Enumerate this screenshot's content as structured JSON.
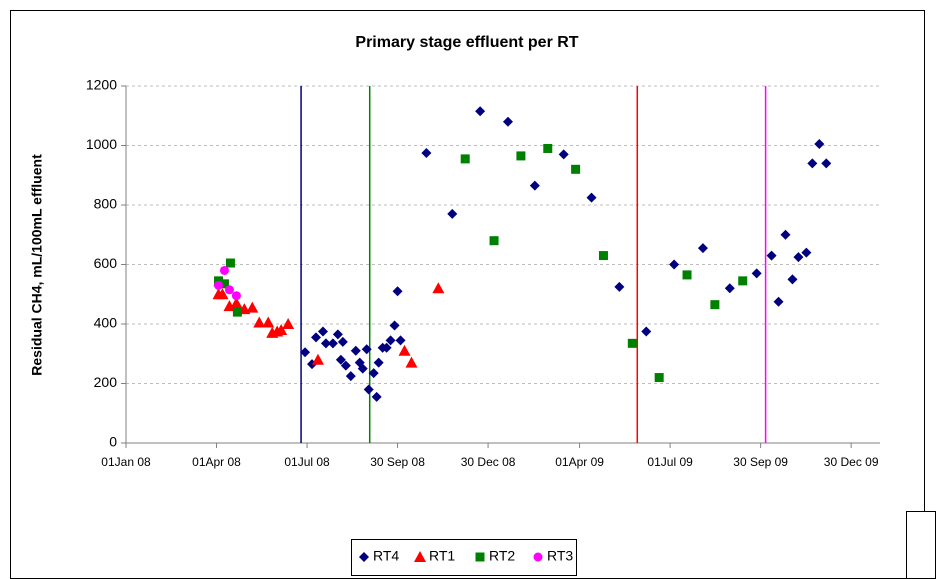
{
  "chart_data": {
    "type": "scatter",
    "title": "Primary stage effluent per RT",
    "y_label": "Residual CH4, mL/100mL effluent",
    "xlim": [
      "2008-01-01",
      "2010-01-28"
    ],
    "xticks": [
      {
        "value": "2008-01-01",
        "label": "01Jan 08"
      },
      {
        "value": "2008-04-01",
        "label": "01Apr 08"
      },
      {
        "value": "2008-07-01",
        "label": "01Jul 08"
      },
      {
        "value": "2008-09-30",
        "label": "30 Sep 08"
      },
      {
        "value": "2008-12-30",
        "label": "30 Dec 08"
      },
      {
        "value": "2009-04-01",
        "label": "01Apr 09"
      },
      {
        "value": "2009-07-01",
        "label": "01Jul 09"
      },
      {
        "value": "2009-09-30",
        "label": "30 Sep 09"
      },
      {
        "value": "2009-12-30",
        "label": "30 Dec 09"
      }
    ],
    "ylim": [
      0,
      1200
    ],
    "yticks": [
      0,
      200,
      400,
      600,
      800,
      1000,
      1200
    ],
    "grid": true,
    "legend": "bottom",
    "vlines": [
      {
        "x": "2008-06-25",
        "color": "#000080"
      },
      {
        "x": "2008-09-02",
        "color": "#008000"
      },
      {
        "x": "2009-05-29",
        "color": "#ff0000"
      },
      {
        "x": "2009-10-05",
        "color": "#ff00ff"
      }
    ],
    "series": [
      {
        "name": "RT4",
        "color": "#000080",
        "marker": "diamond",
        "x": [
          "2008-04-03",
          "2008-06-29",
          "2008-07-06",
          "2008-07-10",
          "2008-07-17",
          "2008-07-20",
          "2008-07-27",
          "2008-08-01",
          "2008-08-04",
          "2008-08-06",
          "2008-08-09",
          "2008-08-14",
          "2008-08-19",
          "2008-08-23",
          "2008-08-26",
          "2008-08-30",
          "2008-09-01",
          "2008-09-06",
          "2008-09-09",
          "2008-09-11",
          "2008-09-15",
          "2008-09-19",
          "2008-09-23",
          "2008-09-27",
          "2008-09-30",
          "2008-10-03",
          "2008-10-29",
          "2008-11-24",
          "2008-12-22",
          "2009-01-19",
          "2009-02-15",
          "2009-03-16",
          "2009-04-13",
          "2009-05-11",
          "2009-06-07",
          "2009-07-05",
          "2009-08-03",
          "2009-08-30",
          "2009-09-26",
          "2009-10-11",
          "2009-10-18",
          "2009-10-25",
          "2009-11-01",
          "2009-11-07",
          "2009-11-15",
          "2009-11-21",
          "2009-11-28",
          "2009-12-05"
        ],
        "values": [
          530,
          305,
          265,
          355,
          375,
          335,
          335,
          365,
          280,
          340,
          260,
          225,
          310,
          270,
          250,
          315,
          180,
          235,
          155,
          270,
          320,
          320,
          345,
          395,
          510,
          345,
          975,
          770,
          1115,
          1080,
          865,
          970,
          825,
          525,
          375,
          600,
          655,
          520,
          570,
          630,
          475,
          700,
          550,
          625,
          640,
          940,
          1005,
          940
        ]
      },
      {
        "name": "RT1",
        "color": "#ff0000",
        "marker": "triangle",
        "x": [
          "2008-04-03",
          "2008-04-07",
          "2008-04-14",
          "2008-04-21",
          "2008-04-29",
          "2008-05-07",
          "2008-05-14",
          "2008-05-23",
          "2008-05-27",
          "2008-06-01",
          "2008-06-05",
          "2008-06-12",
          "2008-07-12",
          "2008-10-07",
          "2008-10-14",
          "2008-11-10"
        ],
        "values": [
          500,
          500,
          460,
          470,
          450,
          455,
          405,
          405,
          370,
          375,
          380,
          400,
          280,
          310,
          270,
          520
        ]
      },
      {
        "name": "RT2",
        "color": "#008000",
        "marker": "square",
        "x": [
          "2008-04-03",
          "2008-04-09",
          "2008-04-15",
          "2008-04-22",
          "2008-12-07",
          "2009-01-05",
          "2009-02-01",
          "2009-02-28",
          "2009-03-28",
          "2009-04-25",
          "2009-05-24",
          "2009-06-20",
          "2009-07-18",
          "2009-08-15",
          "2009-09-12"
        ],
        "values": [
          545,
          535,
          605,
          440,
          955,
          680,
          965,
          990,
          920,
          630,
          335,
          220,
          565,
          465,
          545
        ]
      },
      {
        "name": "RT3",
        "color": "#ff00ff",
        "marker": "circle",
        "x": [
          "2008-04-03",
          "2008-04-09",
          "2008-04-14",
          "2008-04-21"
        ],
        "values": [
          530,
          580,
          515,
          495
        ]
      }
    ]
  }
}
